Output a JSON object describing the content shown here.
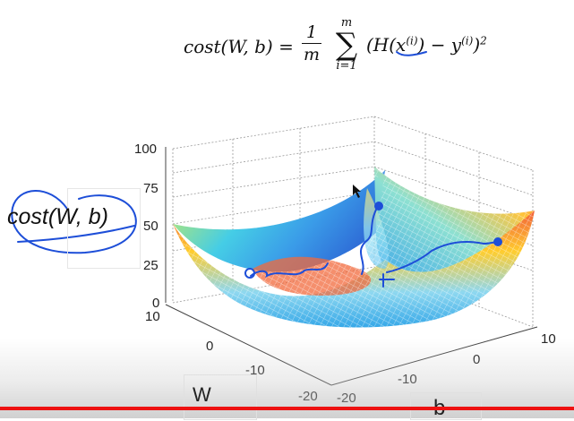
{
  "formula": {
    "lhs": "cost(W, b) =",
    "frac_num": "1",
    "frac_den": "m",
    "sum_top": "m",
    "sum_symbol": "∑",
    "sum_bottom": "i=1",
    "rhs_main": "(H(x",
    "rhs_sup1": "(i)",
    "rhs_mid": ") − y",
    "rhs_sup2": "(i)",
    "rhs_end": ")",
    "rhs_exp": "2"
  },
  "annotation": {
    "label": "cost(W, b)",
    "ink_color": "#2a5ad8"
  },
  "axes": {
    "z_ticks": [
      "100",
      "75",
      "50",
      "25",
      "0"
    ],
    "w_ticks": [
      "10",
      "0",
      "-10",
      "-20"
    ],
    "b_ticks": [
      "-20",
      "-10",
      "0",
      "10"
    ],
    "w_label": "W",
    "b_label": "b"
  },
  "colors": {
    "accent_line": "#e11111",
    "surface_low": "#ffd21a",
    "surface_high": "#2ec4f0"
  }
}
